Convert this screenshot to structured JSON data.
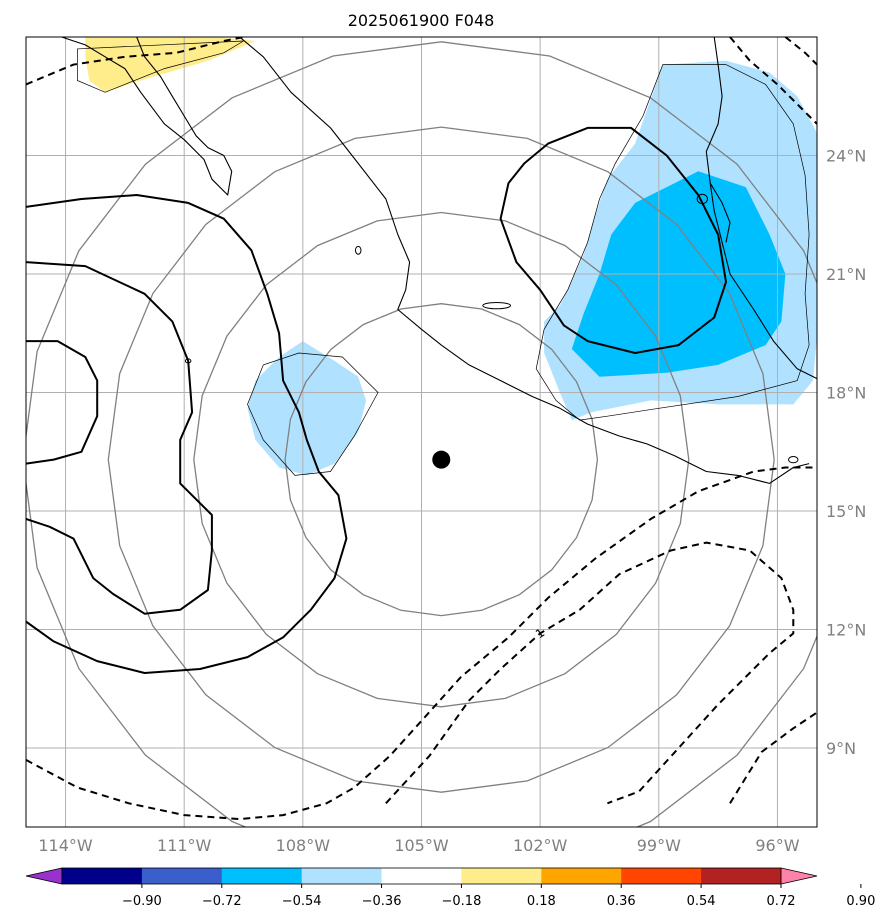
{
  "chart_data": {
    "type": "map",
    "title": "2025061900 F048",
    "projection": "lon-lat",
    "lon_range": [
      -115.0,
      -95.0
    ],
    "lat_range": [
      7.0,
      27.0
    ],
    "x_ticks": [
      {
        "value": -114,
        "label": "114°W"
      },
      {
        "value": -111,
        "label": "111°W"
      },
      {
        "value": -108,
        "label": "108°W"
      },
      {
        "value": -105,
        "label": "105°W"
      },
      {
        "value": -102,
        "label": "102°W"
      },
      {
        "value": -99,
        "label": "99°W"
      },
      {
        "value": -96,
        "label": "96°W"
      }
    ],
    "y_ticks": [
      {
        "value": 9,
        "label": "9°N"
      },
      {
        "value": 12,
        "label": "12°N"
      },
      {
        "value": 15,
        "label": "15°N"
      },
      {
        "value": 18,
        "label": "18°N"
      },
      {
        "value": 21,
        "label": "21°N"
      },
      {
        "value": 24,
        "label": "24°N"
      }
    ],
    "grid": true,
    "center_point": {
      "lon": -104.5,
      "lat": 16.3
    },
    "range_rings_deg": [
      5.3,
      8.4,
      11.3,
      14.2
    ],
    "colorbar": {
      "orientation": "horizontal",
      "extend": "both",
      "ticks": [
        "−0.90",
        "−0.72",
        "−0.54",
        "−0.36",
        "−0.18",
        "0.18",
        "0.36",
        "0.54",
        "0.72",
        "0.90"
      ],
      "colors": [
        "#9932cc",
        "#00008b",
        "#3a5fcd",
        "#00bfff",
        "#b0e2ff",
        "#ffffff",
        "#ffec8b",
        "#ffa500",
        "#ff4500",
        "#b22222",
        "#ff82ab"
      ],
      "under_color": "#9932cc",
      "over_color": "#ff82ab"
    },
    "filled_regions": [
      {
        "level": "-0.36 to -0.18",
        "color": "#b0e2ff",
        "points": [
          [
            -98.9,
            26.3
          ],
          [
            -97.3,
            26.4
          ],
          [
            -96.2,
            26.1
          ],
          [
            -95.5,
            25.5
          ],
          [
            -94.8,
            24.2
          ],
          [
            -94.6,
            22.8
          ],
          [
            -94.8,
            21.0
          ],
          [
            -95.0,
            19.4
          ],
          [
            -95.1,
            18.3
          ],
          [
            -95.6,
            17.7
          ],
          [
            -97.5,
            17.7
          ],
          [
            -99.2,
            17.8
          ],
          [
            -100.7,
            17.5
          ],
          [
            -101.2,
            17.3
          ],
          [
            -101.5,
            18.0
          ],
          [
            -101.9,
            19.0
          ],
          [
            -101.9,
            19.8
          ],
          [
            -101.5,
            20.2
          ],
          [
            -101.2,
            20.8
          ],
          [
            -100.9,
            21.5
          ],
          [
            -100.6,
            22.5
          ],
          [
            -100.3,
            23.4
          ],
          [
            -99.6,
            24.3
          ]
        ]
      },
      {
        "level": "-0.54 to -0.36",
        "color": "#00bfff",
        "points": [
          [
            -98.0,
            23.6
          ],
          [
            -96.8,
            23.2
          ],
          [
            -96.2,
            22.0
          ],
          [
            -95.8,
            21.0
          ],
          [
            -95.9,
            19.8
          ],
          [
            -96.3,
            19.2
          ],
          [
            -97.5,
            18.7
          ],
          [
            -98.8,
            18.5
          ],
          [
            -100.5,
            18.4
          ],
          [
            -101.2,
            19.1
          ],
          [
            -100.9,
            20.0
          ],
          [
            -100.5,
            21.0
          ],
          [
            -100.2,
            22.0
          ],
          [
            -99.6,
            22.8
          ],
          [
            -98.8,
            23.2
          ]
        ]
      },
      {
        "level": "-0.36 to -0.18",
        "color": "#b0e2ff",
        "points": [
          [
            -108.0,
            19.3
          ],
          [
            -107.2,
            18.8
          ],
          [
            -106.6,
            18.4
          ],
          [
            -106.4,
            17.8
          ],
          [
            -106.6,
            17.0
          ],
          [
            -107.2,
            16.2
          ],
          [
            -107.9,
            15.9
          ],
          [
            -108.6,
            16.1
          ],
          [
            -109.2,
            16.8
          ],
          [
            -109.4,
            17.6
          ],
          [
            -109.2,
            18.3
          ],
          [
            -108.6,
            18.9
          ]
        ]
      },
      {
        "level": "0.18 to 0.36",
        "color": "#ffec8b",
        "points": [
          [
            -113.5,
            27.0
          ],
          [
            -110.2,
            27.0
          ],
          [
            -109.2,
            26.9
          ],
          [
            -110.4,
            26.4
          ],
          [
            -112.1,
            25.9
          ],
          [
            -113.0,
            25.6
          ],
          [
            -113.4,
            25.9
          ],
          [
            -113.5,
            26.5
          ]
        ]
      }
    ],
    "thin_outlines": [
      [
        [
          -98.9,
          26.3
        ],
        [
          -97.3,
          26.3
        ],
        [
          -96.3,
          25.8
        ],
        [
          -95.6,
          24.8
        ],
        [
          -95.3,
          23.5
        ],
        [
          -95.2,
          22.0
        ],
        [
          -95.3,
          20.5
        ],
        [
          -95.2,
          19.2
        ],
        [
          -95.5,
          18.3
        ],
        [
          -97.0,
          17.9
        ],
        [
          -99.0,
          17.6
        ],
        [
          -100.3,
          17.4
        ],
        [
          -101.0,
          17.3
        ],
        [
          -101.6,
          17.8
        ],
        [
          -102.1,
          18.6
        ],
        [
          -101.9,
          19.6
        ],
        [
          -101.3,
          20.6
        ],
        [
          -100.8,
          21.8
        ],
        [
          -100.5,
          22.9
        ],
        [
          -100.1,
          23.8
        ],
        [
          -99.4,
          25.0
        ]
      ],
      [
        [
          -108.1,
          19.0
        ],
        [
          -107.0,
          18.9
        ],
        [
          -106.1,
          18.0
        ],
        [
          -106.7,
          16.9
        ],
        [
          -107.3,
          16.0
        ],
        [
          -108.2,
          15.9
        ],
        [
          -109.0,
          16.8
        ],
        [
          -109.4,
          17.7
        ],
        [
          -109.0,
          18.7
        ]
      ],
      [
        [
          -113.7,
          26.7
        ],
        [
          -113.7,
          25.9
        ],
        [
          -113.0,
          25.6
        ],
        [
          -111.5,
          26.2
        ],
        [
          -110.0,
          26.6
        ],
        [
          -109.5,
          26.9
        ]
      ]
    ],
    "solid_contours": [
      [
        [
          -115.0,
          22.7
        ],
        [
          -113.6,
          22.9
        ],
        [
          -112.2,
          23.0
        ],
        [
          -110.9,
          22.8
        ],
        [
          -110.0,
          22.4
        ],
        [
          -109.3,
          21.6
        ],
        [
          -108.9,
          20.5
        ],
        [
          -108.6,
          19.5
        ],
        [
          -108.5,
          18.3
        ],
        [
          -108.1,
          17.5
        ],
        [
          -107.9,
          16.8
        ],
        [
          -107.6,
          16.0
        ],
        [
          -107.1,
          15.4
        ],
        [
          -106.9,
          14.3
        ],
        [
          -107.2,
          13.3
        ],
        [
          -107.8,
          12.5
        ],
        [
          -108.5,
          11.8
        ],
        [
          -109.4,
          11.3
        ],
        [
          -110.6,
          11.0
        ],
        [
          -112.0,
          10.9
        ],
        [
          -113.2,
          11.2
        ],
        [
          -114.3,
          11.7
        ],
        [
          -115.0,
          12.2
        ]
      ],
      [
        [
          -115.0,
          21.3
        ],
        [
          -113.5,
          21.2
        ],
        [
          -112.0,
          20.5
        ],
        [
          -111.3,
          19.8
        ],
        [
          -110.9,
          18.8
        ],
        [
          -110.8,
          17.5
        ],
        [
          -111.1,
          16.8
        ],
        [
          -111.1,
          15.7
        ],
        [
          -110.3,
          14.9
        ],
        [
          -110.3,
          14.0
        ],
        [
          -110.4,
          13.0
        ],
        [
          -111.1,
          12.5
        ],
        [
          -112.0,
          12.4
        ],
        [
          -112.8,
          12.9
        ],
        [
          -113.3,
          13.3
        ],
        [
          -113.8,
          14.3
        ],
        [
          -114.4,
          14.6
        ],
        [
          -115.0,
          14.8
        ]
      ],
      [
        [
          -115.0,
          19.3
        ],
        [
          -114.2,
          19.3
        ],
        [
          -113.5,
          18.9
        ],
        [
          -113.2,
          18.3
        ],
        [
          -113.2,
          17.4
        ],
        [
          -113.6,
          16.5
        ],
        [
          -114.3,
          16.3
        ],
        [
          -115.0,
          16.2
        ]
      ],
      [
        [
          -101.8,
          24.3
        ],
        [
          -100.8,
          24.7
        ],
        [
          -99.7,
          24.7
        ],
        [
          -98.8,
          24.0
        ],
        [
          -98.0,
          23.0
        ],
        [
          -97.5,
          22.0
        ],
        [
          -97.3,
          20.8
        ],
        [
          -97.6,
          19.9
        ],
        [
          -98.5,
          19.2
        ],
        [
          -99.6,
          19.0
        ],
        [
          -100.8,
          19.3
        ],
        [
          -101.4,
          19.7
        ],
        [
          -102.0,
          20.6
        ],
        [
          -102.6,
          21.3
        ],
        [
          -103.0,
          22.4
        ],
        [
          -102.8,
          23.3
        ],
        [
          -102.4,
          23.8
        ]
      ]
    ],
    "dashed_contours": [
      [
        [
          -115.0,
          25.8
        ],
        [
          -113.8,
          26.3
        ],
        [
          -112.5,
          26.5
        ],
        [
          -111.2,
          26.6
        ],
        [
          -110.0,
          26.9
        ],
        [
          -109.5,
          27.0
        ]
      ],
      [
        [
          -97.2,
          27.0
        ],
        [
          -96.7,
          26.4
        ],
        [
          -96.0,
          25.8
        ],
        [
          -95.5,
          25.3
        ],
        [
          -95.0,
          24.8
        ]
      ],
      [
        [
          -95.8,
          27.0
        ],
        [
          -95.3,
          26.6
        ],
        [
          -95.0,
          26.3
        ]
      ],
      [
        [
          -115.0,
          8.7
        ],
        [
          -113.7,
          8.0
        ],
        [
          -112.4,
          7.6
        ],
        [
          -111.0,
          7.3
        ],
        [
          -109.6,
          7.2
        ],
        [
          -108.5,
          7.3
        ],
        [
          -107.4,
          7.6
        ],
        [
          -106.7,
          8.0
        ],
        [
          -105.8,
          8.8
        ],
        [
          -104.9,
          9.8
        ],
        [
          -104.0,
          10.8
        ],
        [
          -102.8,
          11.8
        ],
        [
          -101.8,
          12.8
        ],
        [
          -100.6,
          13.8
        ],
        [
          -99.2,
          14.8
        ],
        [
          -98.0,
          15.5
        ],
        [
          -96.6,
          16.0
        ],
        [
          -95.8,
          16.1
        ],
        [
          -95.0,
          16.1
        ]
      ],
      [
        [
          -105.9,
          7.6
        ],
        [
          -104.8,
          8.8
        ],
        [
          -103.8,
          10.2
        ],
        [
          -103.0,
          11.0
        ],
        [
          -102.0,
          11.9
        ],
        [
          -101.0,
          12.5
        ],
        [
          -100.0,
          13.4
        ],
        [
          -98.7,
          14.0
        ],
        [
          -97.8,
          14.2
        ],
        [
          -96.7,
          14.0
        ],
        [
          -95.9,
          13.3
        ],
        [
          -95.6,
          12.5
        ],
        [
          -95.6,
          11.9
        ],
        [
          -96.2,
          11.4
        ],
        [
          -97.5,
          10.1
        ],
        [
          -98.5,
          9.0
        ],
        [
          -99.5,
          7.9
        ],
        [
          -100.3,
          7.6
        ]
      ],
      [
        [
          -97.2,
          7.6
        ],
        [
          -96.4,
          8.9
        ],
        [
          -95.6,
          9.5
        ],
        [
          -95.0,
          9.9
        ]
      ]
    ],
    "contour_labels": [
      {
        "text": "1",
        "lon": -102.0,
        "lat": 11.9
      }
    ],
    "coastlines": [
      [
        [
          -112.2,
          27.0
        ],
        [
          -112.0,
          26.5
        ],
        [
          -111.6,
          26.0
        ],
        [
          -111.3,
          25.5
        ],
        [
          -111.0,
          25.0
        ],
        [
          -110.7,
          24.5
        ],
        [
          -110.4,
          24.2
        ],
        [
          -110.0,
          24.0
        ],
        [
          -109.8,
          23.6
        ],
        [
          -109.9,
          23.0
        ],
        [
          -110.3,
          23.4
        ],
        [
          -110.5,
          23.9
        ],
        [
          -111.0,
          24.4
        ],
        [
          -111.5,
          24.8
        ],
        [
          -112.1,
          25.6
        ],
        [
          -112.5,
          26.2
        ],
        [
          -113.0,
          26.5
        ],
        [
          -113.5,
          26.8
        ],
        [
          -114.1,
          27.0
        ]
      ],
      [
        [
          -109.6,
          27.0
        ],
        [
          -109.0,
          26.5
        ],
        [
          -108.3,
          25.6
        ],
        [
          -107.3,
          24.7
        ],
        [
          -106.6,
          23.8
        ],
        [
          -105.9,
          22.9
        ],
        [
          -105.6,
          22.0
        ],
        [
          -105.3,
          21.3
        ],
        [
          -105.4,
          20.6
        ],
        [
          -105.6,
          20.1
        ],
        [
          -105.0,
          19.6
        ],
        [
          -104.5,
          19.2
        ],
        [
          -103.8,
          18.7
        ],
        [
          -103.0,
          18.3
        ],
        [
          -102.2,
          17.9
        ],
        [
          -101.5,
          17.6
        ],
        [
          -100.8,
          17.2
        ],
        [
          -100.0,
          16.9
        ],
        [
          -99.3,
          16.7
        ],
        [
          -98.6,
          16.4
        ],
        [
          -97.8,
          16.0
        ],
        [
          -97.0,
          15.9
        ],
        [
          -96.2,
          15.7
        ],
        [
          -95.6,
          16.1
        ],
        [
          -95.2,
          16.2
        ]
      ],
      [
        [
          -97.6,
          27.0
        ],
        [
          -97.5,
          26.3
        ],
        [
          -97.4,
          25.5
        ],
        [
          -97.5,
          24.8
        ],
        [
          -97.8,
          24.1
        ],
        [
          -97.7,
          23.3
        ],
        [
          -97.6,
          22.6
        ],
        [
          -97.4,
          21.8
        ],
        [
          -97.2,
          21.0
        ],
        [
          -96.6,
          20.1
        ],
        [
          -96.1,
          19.3
        ],
        [
          -95.5,
          18.6
        ],
        [
          -94.9,
          18.3
        ]
      ],
      [
        [
          -97.7,
          23.3
        ],
        [
          -97.4,
          22.8
        ],
        [
          -97.2,
          22.3
        ],
        [
          -97.3,
          21.8
        ]
      ]
    ],
    "islands": [
      {
        "lon": -103.1,
        "lat": 20.2,
        "rx": 0.35,
        "ry": 0.08
      },
      {
        "lon": -106.6,
        "lat": 21.6,
        "rx": 0.07,
        "ry": 0.1
      },
      {
        "lon": -110.9,
        "lat": 18.8,
        "rx": 0.07,
        "ry": 0.05
      },
      {
        "lon": -95.6,
        "lat": 16.3,
        "rx": 0.12,
        "ry": 0.08
      },
      {
        "lon": -97.9,
        "lat": 22.9,
        "rx": 0.13,
        "ry": 0.12
      }
    ]
  }
}
